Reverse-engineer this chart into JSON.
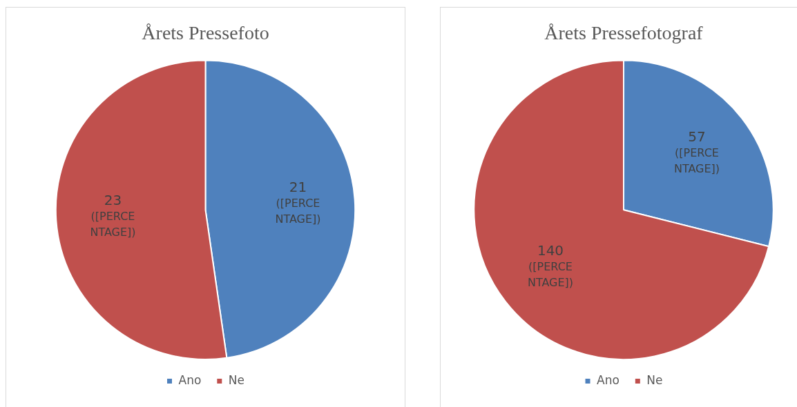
{
  "chart_data": [
    {
      "type": "pie",
      "title": "Årets Pressefoto",
      "categories": [
        "Ano",
        "Ne"
      ],
      "values": [
        21,
        23
      ],
      "colors": [
        "#4f81bd",
        "#c0504d"
      ],
      "value_labels": [
        "21 ([PERCENTAGE])",
        "23 ([PERCENTAGE])"
      ],
      "legend": "bottom"
    },
    {
      "type": "pie",
      "title": "Årets Pressefotograf",
      "categories": [
        "Ano",
        "Ne"
      ],
      "values": [
        57,
        140
      ],
      "colors": [
        "#4f81bd",
        "#c0504d"
      ],
      "value_labels": [
        "57 ([PERCENTAGE])",
        "140 ([PERCENTAGE])"
      ],
      "legend": "bottom"
    }
  ]
}
